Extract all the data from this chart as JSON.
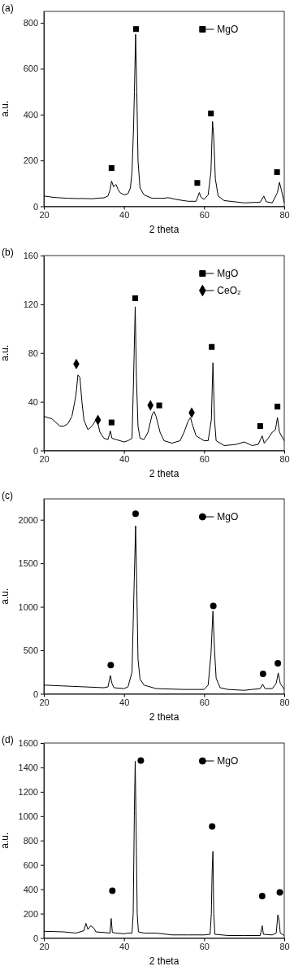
{
  "chart_data": [
    {
      "type": "line",
      "title": "(a)",
      "xlabel": "2 theta",
      "ylabel": "a.u.",
      "xlim": [
        20,
        80
      ],
      "ylim": [
        0,
        850
      ],
      "xticks": [
        20,
        40,
        60,
        80
      ],
      "yticks": [
        0,
        200,
        400,
        600,
        800
      ],
      "legend": "top right",
      "grid": false,
      "series": [
        {
          "color": "#000000",
          "x": [
            20,
            22,
            24,
            26,
            28,
            30,
            32,
            34,
            35,
            36,
            36.5,
            36.9,
            37.4,
            38,
            38.5,
            39,
            40,
            41,
            41.6,
            42,
            42.4,
            42.6,
            42.9,
            43.2,
            43.5,
            44,
            45,
            47,
            50,
            51,
            53,
            56,
            58,
            58.4,
            58.8,
            59.2,
            60,
            61,
            61.7,
            62.1,
            62.4,
            62.8,
            63.5,
            65,
            70,
            74,
            74.9,
            75.5,
            77,
            78.3,
            78.8,
            79.3,
            80
          ],
          "values": [
            45,
            40,
            37,
            35,
            34,
            34,
            33,
            36,
            37,
            45,
            70,
            110,
            85,
            95,
            75,
            60,
            50,
            55,
            80,
            150,
            350,
            500,
            750,
            500,
            200,
            80,
            50,
            35,
            35,
            38,
            30,
            22,
            22,
            40,
            60,
            40,
            30,
            50,
            150,
            370,
            300,
            120,
            45,
            25,
            15,
            18,
            45,
            20,
            15,
            60,
            105,
            70,
            15
          ]
        },
        {
          "type": "scatter",
          "name": "MgO",
          "marker": "square",
          "color": "#000000",
          "x": [
            36.9,
            43.0,
            58.3,
            61.7,
            78.2
          ],
          "values": [
            167,
            773,
            102,
            405,
            149
          ]
        }
      ]
    },
    {
      "type": "line",
      "title": "(b)",
      "xlabel": "2 theta",
      "ylabel": "a.u.",
      "xlim": [
        20,
        80
      ],
      "ylim": [
        0,
        160
      ],
      "xticks": [
        20,
        40,
        60,
        80
      ],
      "yticks": [
        0,
        40,
        80,
        120,
        160
      ],
      "legend": "top right",
      "grid": false,
      "series": [
        {
          "color": "#000000",
          "x": [
            20,
            22,
            24,
            25,
            26,
            27,
            28,
            28.5,
            29,
            29.5,
            30,
            31,
            32,
            33,
            33.5,
            34,
            35,
            36,
            36.6,
            37,
            38,
            40,
            41,
            42,
            42.4,
            42.8,
            43.1,
            43.5,
            44,
            45,
            46,
            47,
            47.5,
            48,
            49,
            50,
            52,
            54,
            55,
            56,
            56.6,
            57,
            58,
            59,
            60,
            61,
            61.8,
            62.2,
            62.6,
            63,
            65,
            68,
            70,
            72,
            73.5,
            74.5,
            75,
            76,
            77,
            77.8,
            78.3,
            78.8,
            80
          ],
          "values": [
            28,
            26,
            20,
            20,
            22,
            28,
            45,
            62,
            60,
            40,
            25,
            17,
            20,
            25,
            22,
            15,
            10,
            9,
            16,
            10,
            9,
            7,
            8,
            10,
            60,
            118,
            60,
            20,
            10,
            9,
            15,
            29,
            32,
            28,
            15,
            8,
            6,
            8,
            15,
            24,
            27,
            22,
            12,
            10,
            8,
            8,
            25,
            72,
            25,
            8,
            4,
            5,
            7,
            4,
            5,
            12,
            6,
            10,
            15,
            17,
            27,
            15,
            8
          ]
        },
        {
          "type": "scatter",
          "name": "MgO",
          "marker": "square",
          "color": "#000000",
          "x": [
            36.9,
            42.8,
            48.8,
            61.9,
            74.0,
            78.3
          ],
          "values": [
            23,
            125,
            37,
            85,
            20,
            36
          ]
        },
        {
          "type": "scatter",
          "name": "CeO₂",
          "marker": "diamond",
          "color": "#000000",
          "x": [
            28.1,
            33.5,
            46.6,
            56.9
          ],
          "values": [
            71,
            25,
            37,
            31
          ]
        }
      ]
    },
    {
      "type": "line",
      "title": "(c)",
      "xlabel": "2 theta",
      "ylabel": "a.u.",
      "xlim": [
        20,
        80
      ],
      "ylim": [
        0,
        2240
      ],
      "xticks": [
        20,
        40,
        60,
        80
      ],
      "yticks": [
        0,
        500,
        1000,
        1500,
        2000
      ],
      "legend": "top right",
      "grid": false,
      "series": [
        {
          "color": "#000000",
          "x": [
            20,
            25,
            30,
            35,
            36,
            36.6,
            37,
            37.5,
            40,
            41,
            42,
            42.5,
            42.9,
            43.2,
            43.5,
            44,
            45,
            48,
            55,
            60,
            61,
            61.7,
            62.2,
            62.6,
            63,
            64,
            66,
            70,
            74,
            74.6,
            75.2,
            77,
            78,
            78.5,
            79,
            80
          ],
          "values": [
            100,
            90,
            80,
            70,
            80,
            210,
            120,
            70,
            60,
            80,
            250,
            1200,
            1930,
            1200,
            400,
            170,
            100,
            60,
            50,
            50,
            100,
            450,
            950,
            500,
            180,
            70,
            50,
            40,
            60,
            110,
            60,
            60,
            120,
            240,
            120,
            50
          ]
        },
        {
          "type": "scatter",
          "name": "MgO",
          "marker": "circle",
          "color": "#000000",
          "x": [
            36.7,
            42.9,
            62.3,
            74.7,
            78.4
          ],
          "values": [
            330,
            2070,
            1010,
            230,
            350
          ]
        }
      ]
    },
    {
      "type": "line",
      "title": "(d)",
      "xlabel": "2 theta",
      "ylabel": "a.u.",
      "xlim": [
        20,
        80
      ],
      "ylim": [
        0,
        1600
      ],
      "xticks": [
        20,
        40,
        60,
        80
      ],
      "yticks": [
        0,
        200,
        400,
        600,
        800,
        1000,
        1200,
        1400,
        1600
      ],
      "legend": "top right",
      "grid": false,
      "series": [
        {
          "color": "#000000",
          "x": [
            20,
            25,
            28,
            30,
            30.5,
            31,
            31.7,
            32.5,
            33,
            35,
            36.5,
            36.8,
            37.1,
            38,
            40,
            41,
            42,
            42.3,
            42.6,
            42.8,
            43,
            43.3,
            43.6,
            45,
            48,
            52,
            56,
            60,
            61.5,
            61.8,
            62.0,
            62.2,
            62.4,
            62.7,
            66,
            70,
            74,
            74.5,
            74.8,
            77,
            78,
            78.4,
            78.7,
            79,
            80
          ],
          "values": [
            55,
            50,
            40,
            60,
            120,
            70,
            100,
            80,
            50,
            45,
            40,
            160,
            45,
            40,
            35,
            40,
            40,
            200,
            1050,
            1450,
            970,
            200,
            50,
            40,
            40,
            25,
            25,
            25,
            30,
            200,
            550,
            710,
            200,
            30,
            20,
            20,
            20,
            100,
            30,
            25,
            40,
            190,
            150,
            40,
            20
          ]
        },
        {
          "type": "scatter",
          "name": "MgO",
          "marker": "circle",
          "color": "#000000",
          "x": [
            37.1,
            44.2,
            62.0,
            74.5,
            78.9
          ],
          "values": [
            387,
            1456,
            916,
            344,
            374
          ]
        }
      ]
    }
  ]
}
